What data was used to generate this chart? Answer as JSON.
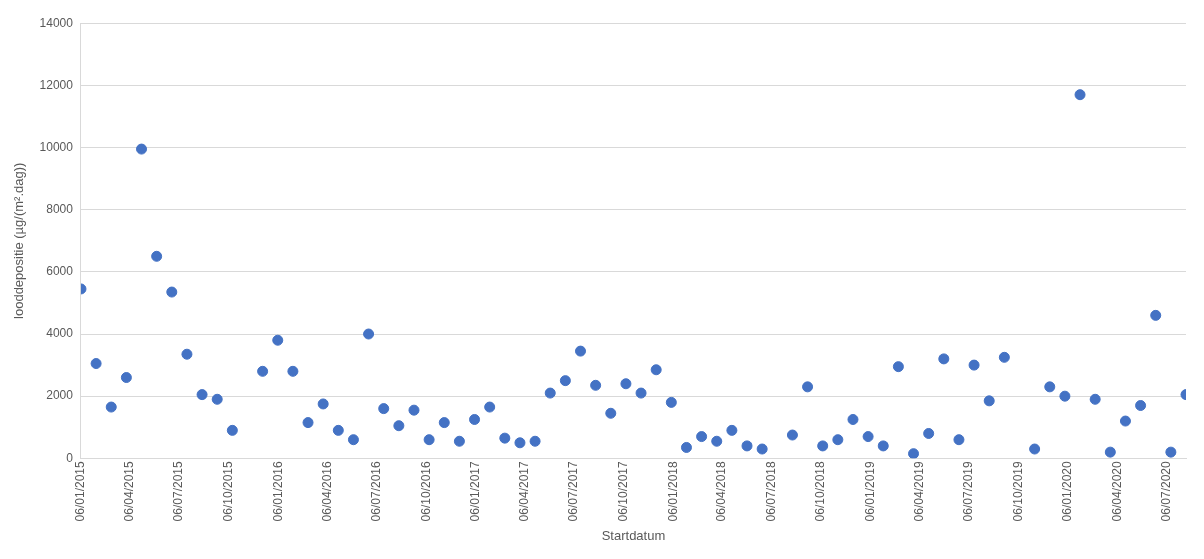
{
  "chart_data": {
    "type": "scatter",
    "xlabel": "Startdatum",
    "ylabel": "looddepositie (µg/(m².dag))",
    "color": "#4472c4",
    "marker": "circle",
    "grid": "y",
    "x": [
      "2015-01-06",
      "2015-02-03",
      "2015-03-03",
      "2015-03-31",
      "2015-04-28",
      "2015-05-26",
      "2015-06-23",
      "2015-07-21",
      "2015-08-18",
      "2015-09-15",
      "2015-10-13",
      "2015-12-08",
      "2016-01-05",
      "2016-02-02",
      "2016-03-01",
      "2016-03-29",
      "2016-04-26",
      "2016-05-24",
      "2016-06-21",
      "2016-07-19",
      "2016-08-16",
      "2016-09-13",
      "2016-10-11",
      "2016-11-08",
      "2016-12-06",
      "2017-01-03",
      "2017-01-31",
      "2017-02-28",
      "2017-03-28",
      "2017-04-25",
      "2017-05-23",
      "2017-06-20",
      "2017-07-18",
      "2017-08-15",
      "2017-09-12",
      "2017-10-10",
      "2017-11-07",
      "2017-12-05",
      "2018-01-02",
      "2018-01-30",
      "2018-02-27",
      "2018-03-27",
      "2018-04-24",
      "2018-05-22",
      "2018-06-19",
      "2018-08-14",
      "2018-09-11",
      "2018-10-09",
      "2018-11-06",
      "2018-12-04",
      "2019-01-01",
      "2019-01-29",
      "2019-02-26",
      "2019-03-26",
      "2019-04-23",
      "2019-05-21",
      "2019-06-18",
      "2019-07-16",
      "2019-08-13",
      "2019-09-10",
      "2019-11-05",
      "2019-12-03",
      "2019-12-31",
      "2020-01-28",
      "2020-02-25",
      "2020-03-24",
      "2020-04-21",
      "2020-05-19",
      "2020-06-16",
      "2020-07-14",
      "2020-08-11"
    ],
    "values": [
      5450,
      3050,
      1650,
      2600,
      9950,
      6500,
      5350,
      3350,
      2050,
      1900,
      900,
      2800,
      3800,
      2800,
      1150,
      1750,
      900,
      600,
      4000,
      1600,
      1050,
      1550,
      600,
      1150,
      550,
      1250,
      1650,
      650,
      500,
      550,
      2100,
      2500,
      3450,
      2350,
      1450,
      2400,
      2100,
      2850,
      1800,
      350,
      700,
      550,
      900,
      400,
      300,
      750,
      2300,
      400,
      600,
      1250,
      700,
      400,
      2950,
      150,
      800,
      3200,
      600,
      3000,
      1850,
      3250,
      300,
      2300,
      2000,
      11700,
      1900,
      200,
      1200,
      1700,
      4600,
      200,
      2050
    ],
    "xlim": [
      "2015-01-06",
      "2020-08-11"
    ],
    "xticks": [
      {
        "value": "2015-01-06",
        "label": "06/01/2015"
      },
      {
        "value": "2015-04-06",
        "label": "06/04/2015"
      },
      {
        "value": "2015-07-06",
        "label": "06/07/2015"
      },
      {
        "value": "2015-10-06",
        "label": "06/10/2015"
      },
      {
        "value": "2016-01-06",
        "label": "06/01/2016"
      },
      {
        "value": "2016-04-06",
        "label": "06/04/2016"
      },
      {
        "value": "2016-07-06",
        "label": "06/07/2016"
      },
      {
        "value": "2016-10-06",
        "label": "06/10/2016"
      },
      {
        "value": "2017-01-06",
        "label": "06/01/2017"
      },
      {
        "value": "2017-04-06",
        "label": "06/04/2017"
      },
      {
        "value": "2017-07-06",
        "label": "06/07/2017"
      },
      {
        "value": "2017-10-06",
        "label": "06/10/2017"
      },
      {
        "value": "2018-01-06",
        "label": "06/01/2018"
      },
      {
        "value": "2018-04-06",
        "label": "06/04/2018"
      },
      {
        "value": "2018-07-06",
        "label": "06/07/2018"
      },
      {
        "value": "2018-10-06",
        "label": "06/10/2018"
      },
      {
        "value": "2019-01-06",
        "label": "06/01/2019"
      },
      {
        "value": "2019-04-06",
        "label": "06/04/2019"
      },
      {
        "value": "2019-07-06",
        "label": "06/07/2019"
      },
      {
        "value": "2019-10-06",
        "label": "06/10/2019"
      },
      {
        "value": "2020-01-06",
        "label": "06/01/2020"
      },
      {
        "value": "2020-04-06",
        "label": "06/04/2020"
      },
      {
        "value": "2020-07-06",
        "label": "06/07/2020"
      }
    ],
    "ylim": [
      0,
      14000
    ],
    "yticks": [
      0,
      2000,
      4000,
      6000,
      8000,
      10000,
      12000,
      14000
    ]
  }
}
